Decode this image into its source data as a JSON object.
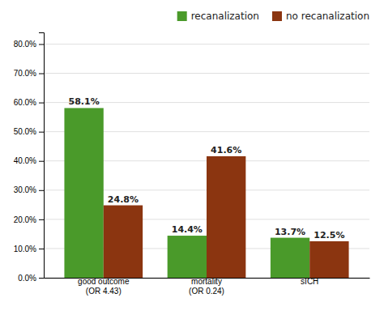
{
  "chart_data": {
    "type": "bar",
    "categories": [
      "good outcome\n(OR 4.43)",
      "mortality\n(OR 0.24)",
      "sICH"
    ],
    "series": [
      {
        "name": "recanalization",
        "color": "#4a9a2a",
        "values": [
          58.1,
          14.4,
          13.7
        ],
        "value_labels": [
          "58.1%",
          "14.4%",
          "13.7%"
        ]
      },
      {
        "name": "no recanalization",
        "color": "#8b3510",
        "values": [
          24.8,
          41.6,
          12.5
        ],
        "value_labels": [
          "24.8%",
          "41.6%",
          "12.5%"
        ]
      }
    ],
    "ylim": [
      0,
      84
    ],
    "yticks": [
      {
        "value": 0,
        "label": "0.0%"
      },
      {
        "value": 10,
        "label": "10.0%"
      },
      {
        "value": 20,
        "label": "20.0%"
      },
      {
        "value": 30,
        "label": "30.0%"
      },
      {
        "value": 40,
        "label": "40.0%"
      },
      {
        "value": 50,
        "label": "50.0%"
      },
      {
        "value": 60,
        "label": "60.0%"
      },
      {
        "value": 70,
        "label": "70.0%"
      },
      {
        "value": 80,
        "label": "80.0%"
      }
    ],
    "grid": true,
    "legend": "upper right",
    "data_labels": true
  }
}
